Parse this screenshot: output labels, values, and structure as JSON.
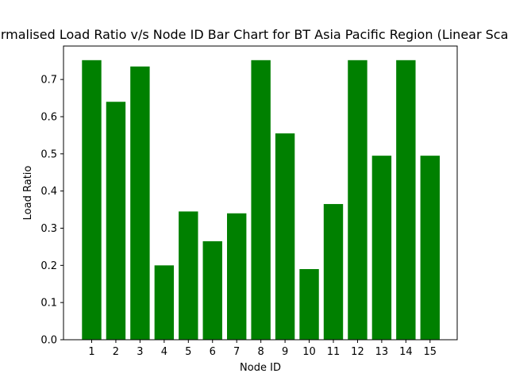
{
  "chart_data": {
    "type": "bar",
    "title": "Normalised Load Ratio v/s Node ID Bar Chart for BT Asia Pacific Region (Linear Scale)",
    "xlabel": "Node ID",
    "ylabel": "Load Ratio",
    "categories": [
      "1",
      "2",
      "3",
      "4",
      "5",
      "6",
      "7",
      "8",
      "9",
      "10",
      "11",
      "12",
      "13",
      "14",
      "15"
    ],
    "values": [
      0.752,
      0.64,
      0.735,
      0.2,
      0.345,
      0.265,
      0.34,
      0.752,
      0.555,
      0.19,
      0.365,
      0.752,
      0.495,
      0.752,
      0.495
    ],
    "ylim": [
      0,
      0.79
    ],
    "yticks": [
      "0.0",
      "0.1",
      "0.2",
      "0.3",
      "0.4",
      "0.5",
      "0.6",
      "0.7"
    ],
    "bar_color": "#008000",
    "grid": false,
    "legend": "none"
  }
}
